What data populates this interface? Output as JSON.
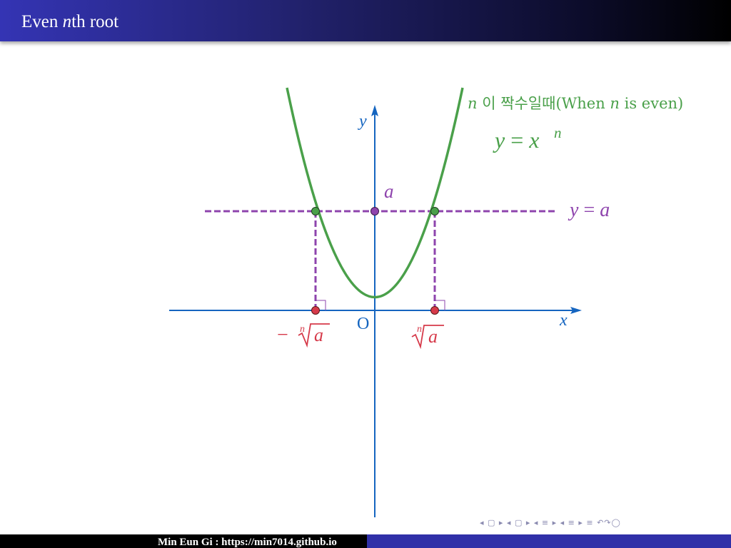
{
  "slide": {
    "title_prefix": "Even ",
    "title_italic": "n",
    "title_suffix": "th root"
  },
  "figure": {
    "curve_label_n": "n",
    "curve_label_korean": " 이 짝수일때(When ",
    "curve_label_n2": "n",
    "curve_label_end": " is even)",
    "curve_eq_lhs": "y",
    "curve_eq_op": " = ",
    "curve_eq_base": "x",
    "curve_eq_exp": "n",
    "line_eq_lhs": "y",
    "line_eq_op": " = ",
    "line_eq_rhs": "a",
    "point_a_label": "a",
    "x_axis_label": "x",
    "y_axis_label": "y",
    "origin_label": "O",
    "neg_root_minus": "−",
    "root_index": "n",
    "root_radicand": "a",
    "colors": {
      "curve": "#4aa04a",
      "line": "#8e44ad",
      "axis": "#1565c0",
      "root_point": "#d63a4a"
    }
  },
  "footer": {
    "author": "Min Eun Gi : https://min7014.github.io"
  },
  "nav": {
    "symbols": "◂ ▢ ▸ ◂ ▢ ▸ ◂ ≡ ▸ ◂ ≡ ▸   ≡   ↶↷◯"
  }
}
